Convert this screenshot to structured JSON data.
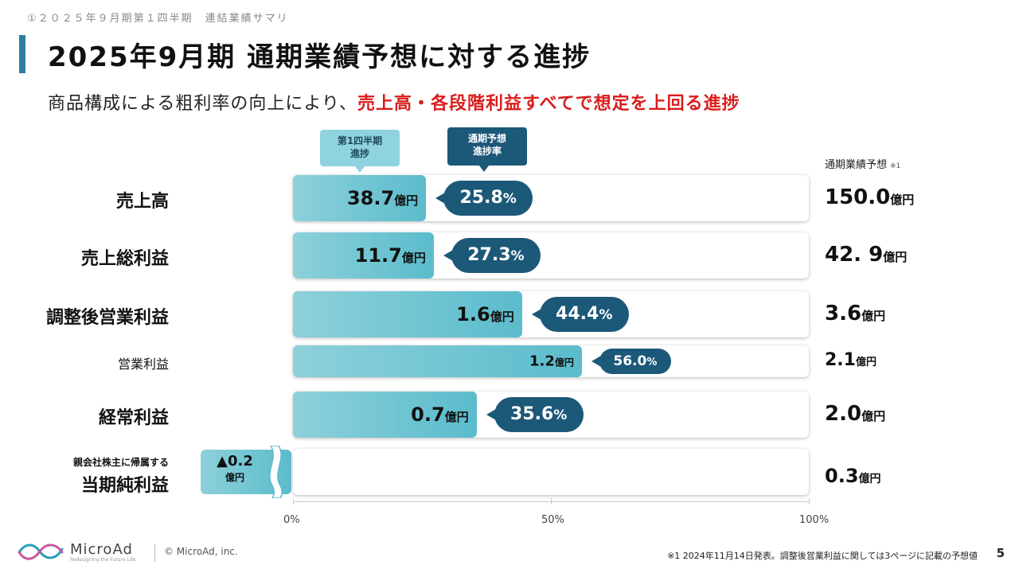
{
  "breadcrumb": "①２０２５年９月期第１四半期　連結業績サマリ",
  "title": "2025年9月期 通期業績予想に対する進捗",
  "subtitle": {
    "lead": "商品構成による粗利率の向上により、",
    "highlight": "売上高・各段階利益すべてで想定を上回る進捗"
  },
  "callouts": {
    "q1_progress": "第1四半期\n進捗",
    "full_year_rate": "通期予想\n進捗率"
  },
  "forecast_header": {
    "label": "通期業績予想",
    "note": "※1"
  },
  "colors": {
    "accent": "#1c5878",
    "bar": "#5bbccc",
    "highlight": "#d91c1c"
  },
  "chart_data": {
    "type": "bar",
    "orientation": "horizontal",
    "xlim": [
      0,
      100
    ],
    "x_ticks": [
      "0%",
      "50%",
      "100%"
    ],
    "unit": "億円",
    "rows": [
      {
        "label": "売上高",
        "q1": "38.7",
        "q1_unit": "億円",
        "rate": "25.8",
        "rate_unit": "%",
        "rate_value": 25.8,
        "forecast": "150.0",
        "forecast_unit": "億円"
      },
      {
        "label": "売上総利益",
        "q1": "11.7",
        "q1_unit": "億円",
        "rate": "27.3",
        "rate_unit": "%",
        "rate_value": 27.3,
        "forecast": "42. 9",
        "forecast_unit": "億円"
      },
      {
        "label": "調整後営業利益",
        "q1": "1.6",
        "q1_unit": "億円",
        "rate": "44.4",
        "rate_unit": "%",
        "rate_value": 44.4,
        "forecast": "3.6",
        "forecast_unit": "億円"
      },
      {
        "label": "営業利益",
        "q1": "1.2",
        "q1_unit": "億円",
        "rate": "56.0",
        "rate_unit": "%",
        "rate_value": 56.0,
        "forecast": "2.1",
        "forecast_unit": "億円"
      },
      {
        "label": "経常利益",
        "q1": "0.7",
        "q1_unit": "億円",
        "rate": "35.6",
        "rate_unit": "%",
        "rate_value": 35.6,
        "forecast": "2.0",
        "forecast_unit": "億円"
      }
    ],
    "net_income": {
      "label_small": "親会社株主に帰属する",
      "label_large": "当期純利益",
      "q1": "▲0.2",
      "q1_unit": "億円",
      "forecast": "0.3",
      "forecast_unit": "億円"
    }
  },
  "footer": {
    "brand": "MicroAd",
    "tagline": "Redesigning the Future Life",
    "copyright": "© MicroAd, inc.",
    "footnote": "※1 2024年11月14日発表。調整後営業利益に関しては3ページに記載の予想値",
    "page": "5"
  }
}
